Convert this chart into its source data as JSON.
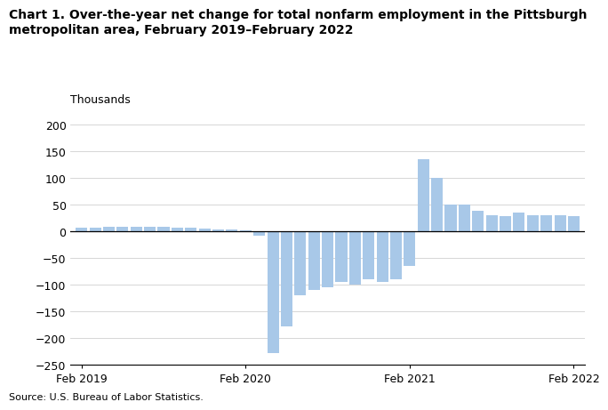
{
  "title_line1": "Chart 1. Over-the-year net change for total nonfarm employment in the Pittsburgh",
  "title_line2": "metropolitan area, February 2019–February 2022",
  "ylabel": "Thousands",
  "source": "Source: U.S. Bureau of Labor Statistics.",
  "bar_color": "#a8c8e8",
  "background_color": "#ffffff",
  "ylim": [
    -250,
    200
  ],
  "yticks": [
    -250,
    -200,
    -150,
    -100,
    -50,
    0,
    50,
    100,
    150,
    200
  ],
  "values": [
    7,
    7,
    8,
    8,
    9,
    8,
    8,
    7,
    6,
    5,
    4,
    3,
    2,
    -8,
    -228,
    -178,
    -120,
    -110,
    -105,
    -95,
    -100,
    -90,
    -95,
    -90,
    -65,
    135,
    100,
    50,
    50,
    38,
    30,
    28,
    35,
    30,
    30,
    30,
    28
  ],
  "xtick_positions": [
    0,
    12,
    24,
    36
  ],
  "xtick_labels": [
    "Feb 2019",
    "Feb 2020",
    "Feb 2021",
    "Feb 2022"
  ],
  "title_fontsize": 10,
  "tick_fontsize": 9,
  "ylabel_fontsize": 9,
  "source_fontsize": 8
}
